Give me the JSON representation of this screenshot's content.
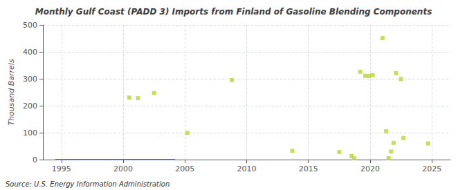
{
  "chart_data": {
    "type": "scatter",
    "title": "Monthly Gulf Coast (PADD 3) Imports from Finland of Gasoline Blending Components",
    "ylabel": "Thousand Barrels",
    "annotation": "Source: U.S. Energy Information Administration",
    "xlim": [
      1993.5,
      2026.5
    ],
    "xticks": [
      1995,
      2000,
      2005,
      2010,
      2015,
      2020,
      2025
    ],
    "ylim": [
      0,
      500
    ],
    "yticks": [
      0,
      100,
      200,
      300,
      400,
      500
    ],
    "grid": true,
    "series": [
      {
        "type": "line",
        "line_style": "solid",
        "x": [
          1994.5,
          2004.2
        ],
        "values": [
          0,
          0
        ]
      },
      {
        "type": "scatter",
        "marker": "square",
        "x": [
          2000.5,
          2001.2,
          2002.5,
          2005.2,
          2008.8,
          2013.7,
          2017.5,
          2018.5,
          2018.7,
          2019.2,
          2019.6,
          2019.9,
          2020.2,
          2021.0,
          2021.3,
          2021.5,
          2021.7,
          2021.9,
          2022.1,
          2022.5,
          2022.7,
          2024.7
        ],
        "values": [
          230,
          228,
          247,
          99,
          295,
          32,
          28,
          13,
          5,
          326,
          311,
          310,
          313,
          451,
          105,
          5,
          30,
          62,
          321,
          299,
          80,
          60
        ]
      }
    ]
  }
}
